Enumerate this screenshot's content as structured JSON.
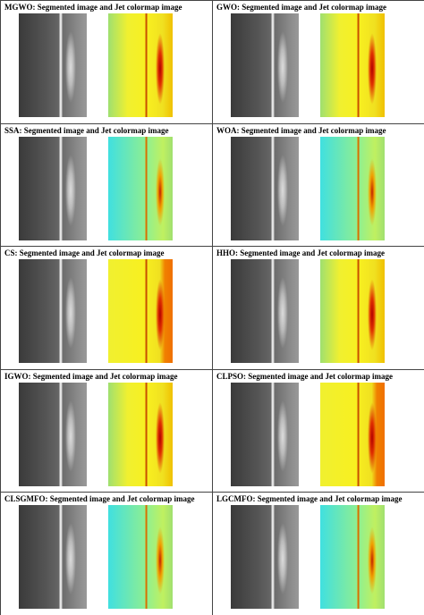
{
  "panels": [
    {
      "title": "MGWO: Segmented image and Jet colormap image"
    },
    {
      "title": "GWO: Segmented image and Jet colormap image"
    },
    {
      "title": "SSA: Segmented image and Jet colormap image"
    },
    {
      "title": "WOA: Segmented image and Jet colormap image"
    },
    {
      "title": "CS: Segmented image and Jet colormap image"
    },
    {
      "title": "HHO: Segmented image and Jet colormap image"
    },
    {
      "title": "IGWO: Segmented image and Jet colormap image"
    },
    {
      "title": "CLPSO: Segmented image and Jet colormap image"
    },
    {
      "title": "CLSGMFO: Segmented image and Jet colormap image"
    },
    {
      "title": "LGCMFO: Segmented image and Jet colormap image"
    }
  ]
}
